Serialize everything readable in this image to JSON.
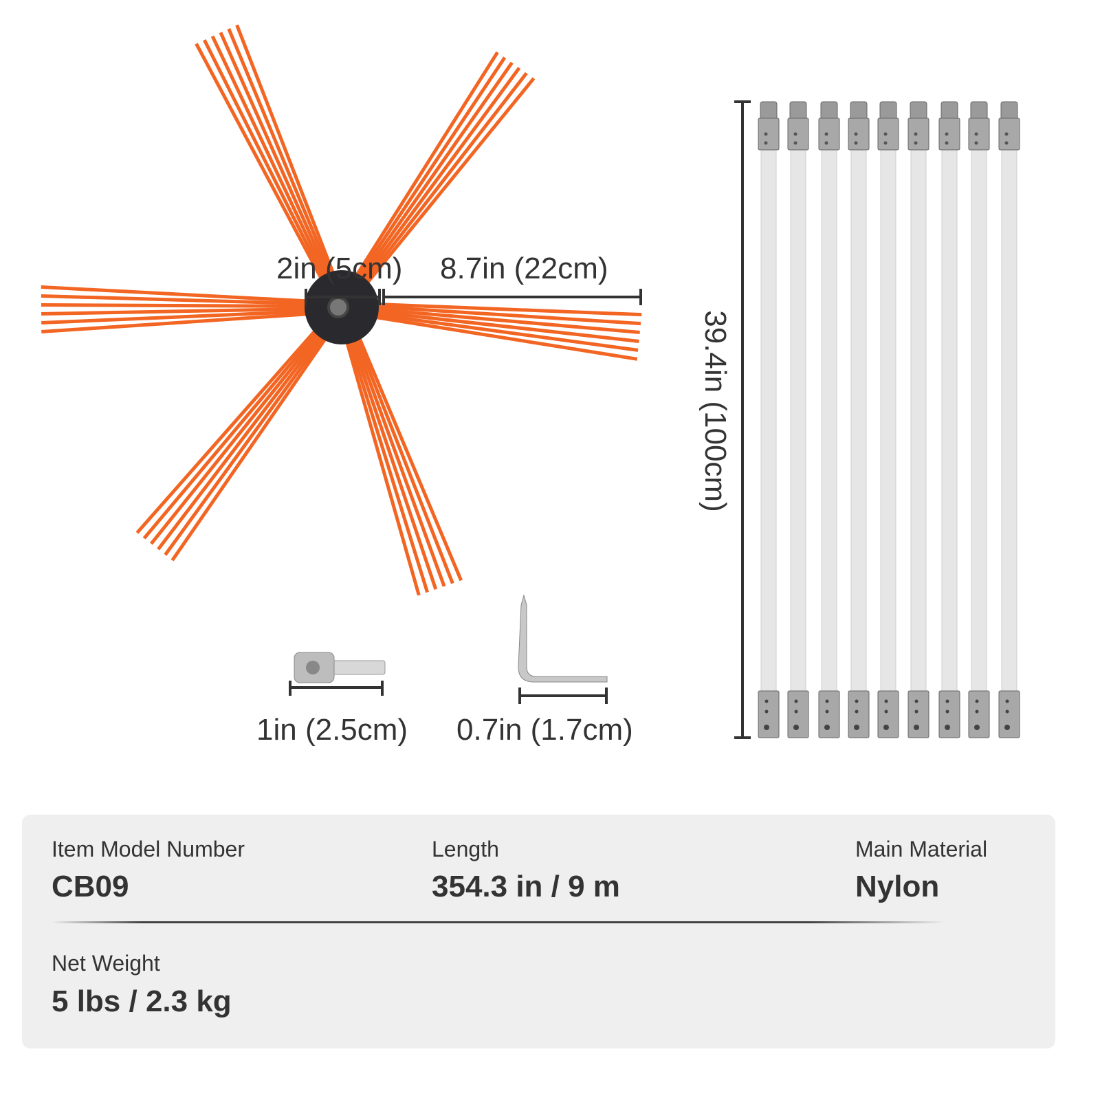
{
  "dimensions": {
    "hub": "2in (5cm)",
    "arm": "8.7in (22cm)",
    "rod": "39.4in (100cm)",
    "adapter": "1in (2.5cm)",
    "wrench": "0.7in (1.7cm)"
  },
  "colors": {
    "bristle": "#f26522",
    "hub": "#2a2a2e",
    "rod": "#e6e6e6",
    "panel": "#efefef"
  },
  "rod_count": 9,
  "specs": [
    {
      "label": "Item Model Number",
      "value": "CB09"
    },
    {
      "label": "Length",
      "value": "354.3 in / 9 m"
    },
    {
      "label": "Main Material",
      "value": "Nylon"
    },
    {
      "label": "Net Weight",
      "value": "5 lbs / 2.3 kg"
    }
  ]
}
